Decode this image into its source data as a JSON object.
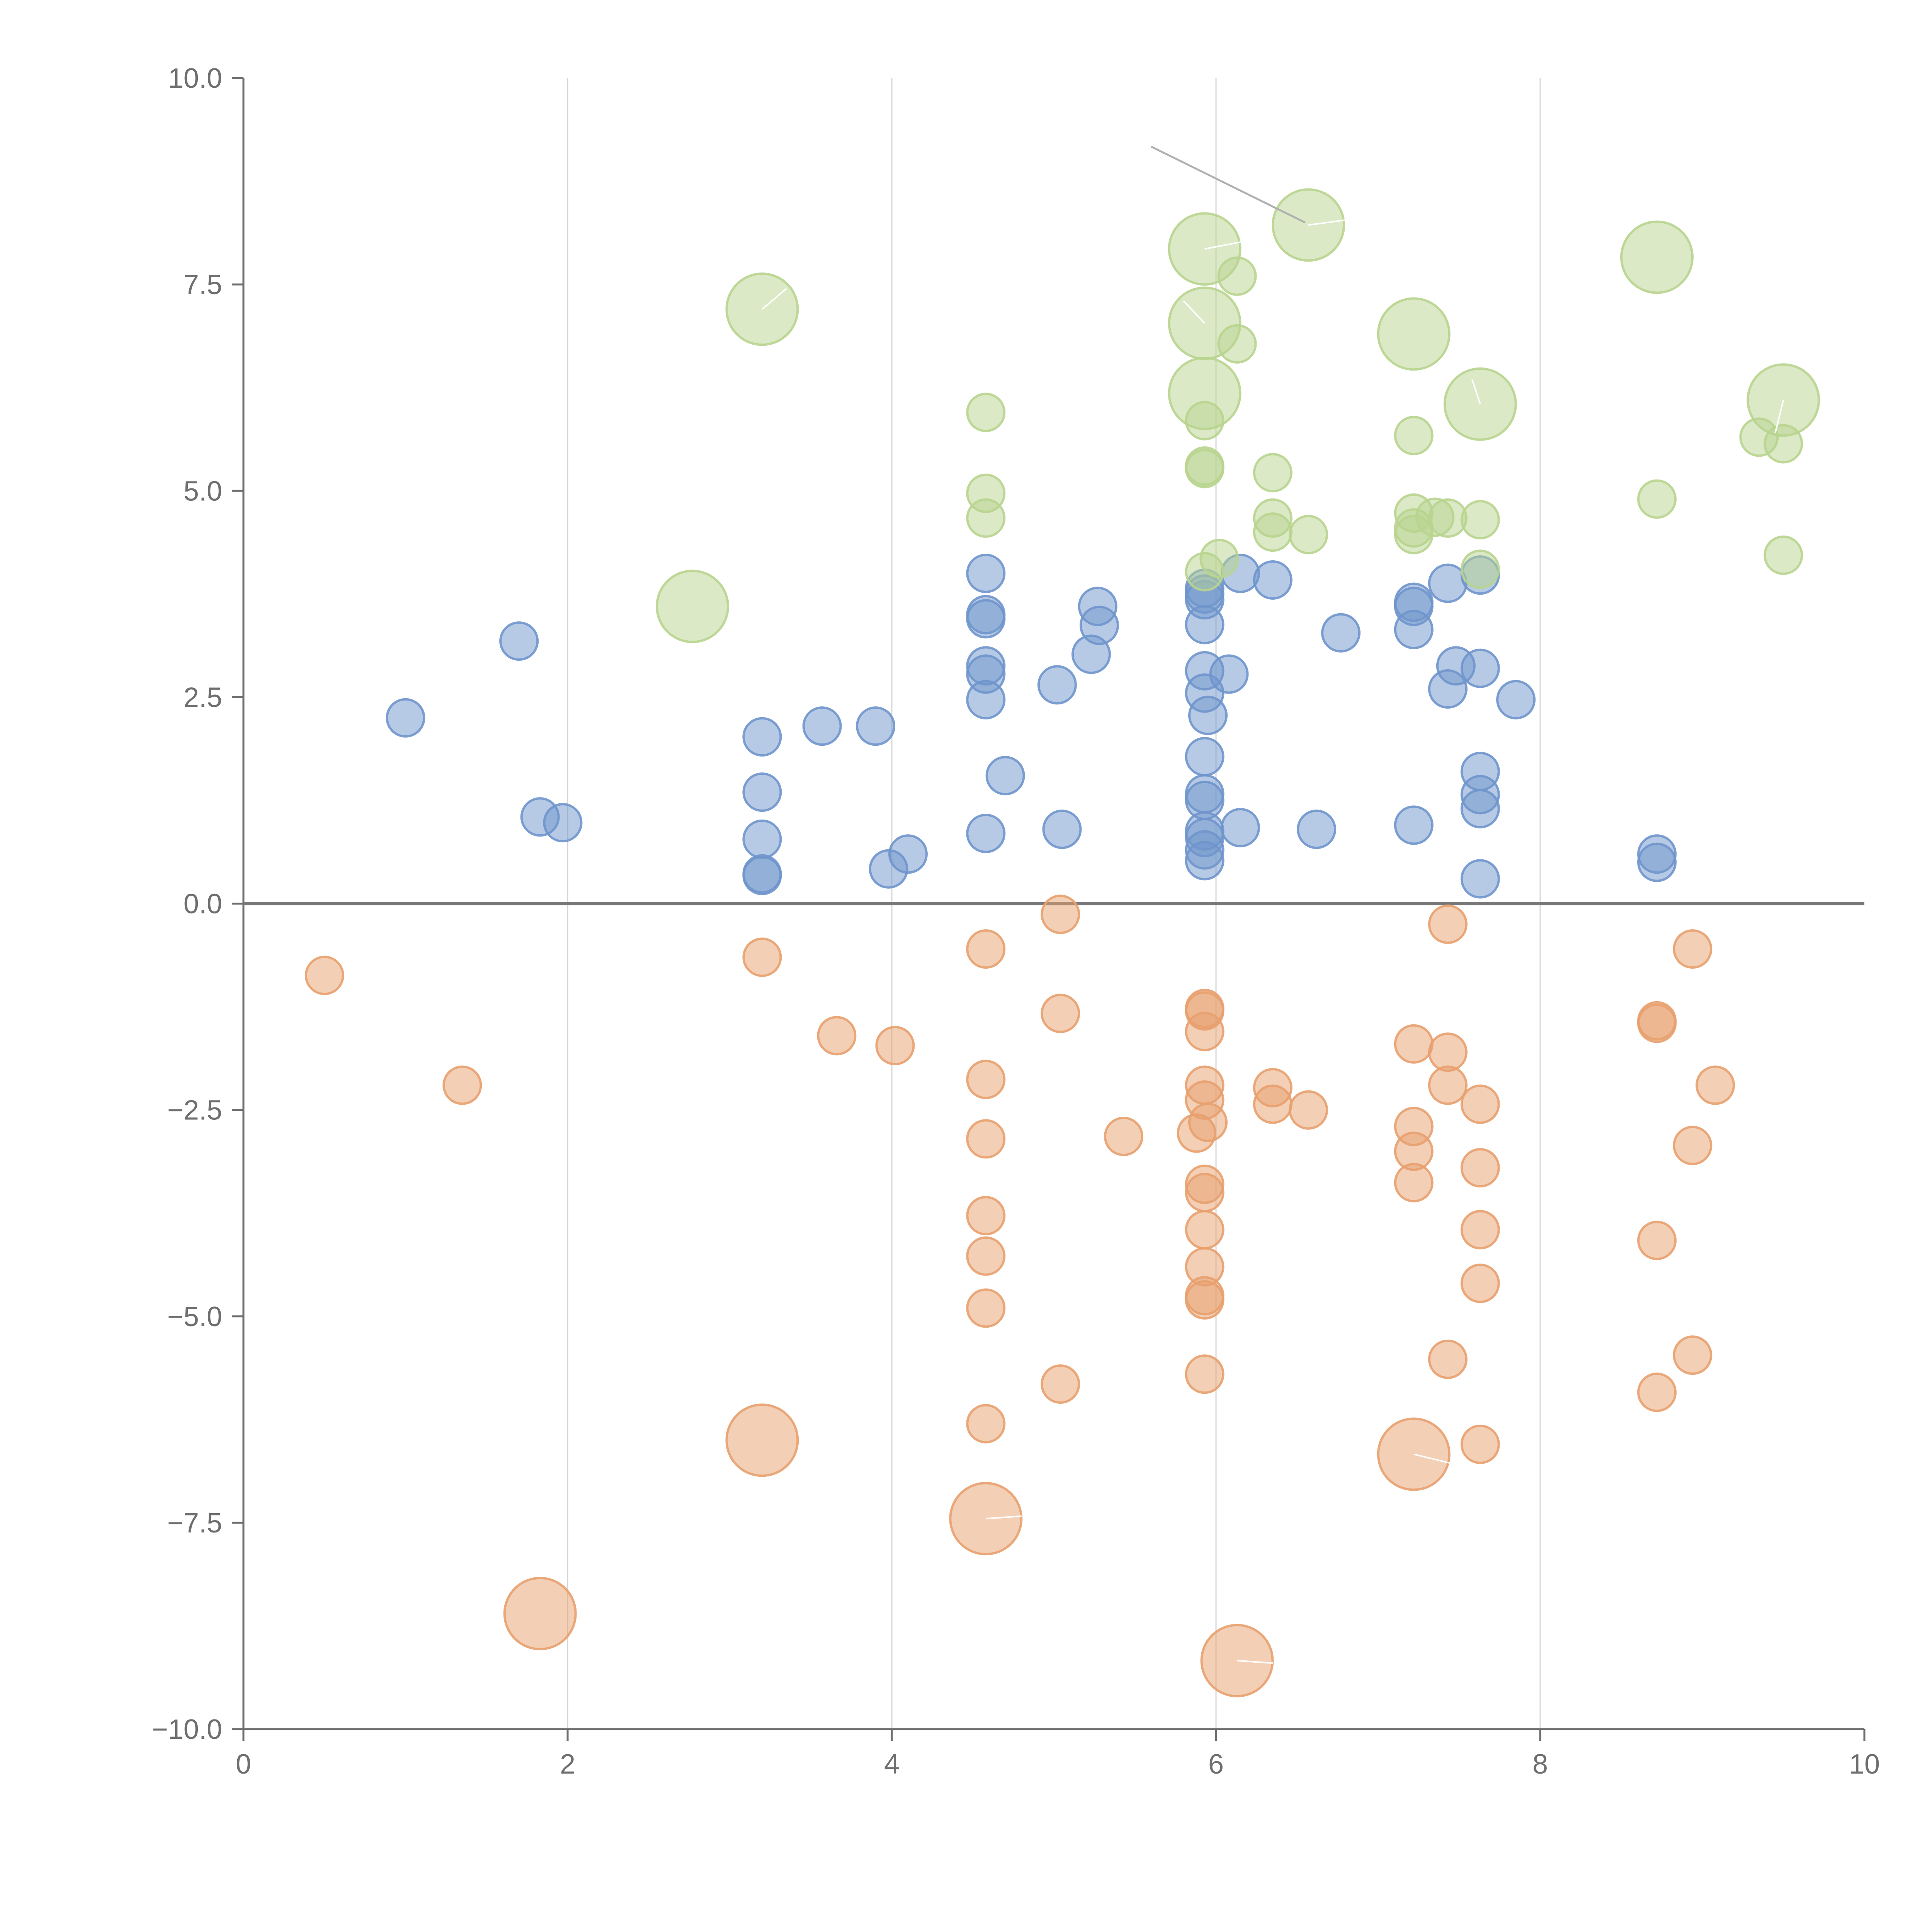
{
  "chart_data": {
    "type": "scatter",
    "variant": "bubble",
    "title": "",
    "xlabel": "",
    "ylabel": "",
    "xlim": [
      0,
      10
    ],
    "ylim": [
      -10,
      10
    ],
    "x_ticks": [
      0,
      2,
      4,
      6,
      8,
      10
    ],
    "x_tick_labels": [
      "0",
      "2",
      "4",
      "6",
      "8",
      "10"
    ],
    "y_ticks": [
      10,
      7.5,
      5,
      2.5,
      0,
      -2.5,
      -5,
      -7.5,
      -10
    ],
    "y_tick_labels": [
      "10.0",
      "7.5",
      "5.0",
      "2.5",
      "0.0",
      "−2.5",
      "−5.0",
      "−7.5",
      "−10.0"
    ],
    "grid": "vertical",
    "reference_line_y": 0,
    "legend": "none",
    "series": [
      {
        "name": "blue",
        "color": "#6f95cc",
        "points": [
          {
            "x": 1.0,
            "y": 2.25,
            "r": 1
          },
          {
            "x": 1.7,
            "y": 3.18,
            "r": 1
          },
          {
            "x": 1.83,
            "y": 1.05,
            "r": 1
          },
          {
            "x": 1.97,
            "y": 0.98,
            "r": 1
          },
          {
            "x": 3.2,
            "y": 2.02,
            "r": 1
          },
          {
            "x": 3.2,
            "y": 1.35,
            "r": 1
          },
          {
            "x": 3.2,
            "y": 0.78,
            "r": 1
          },
          {
            "x": 3.2,
            "y": 0.36,
            "r": 1
          },
          {
            "x": 3.2,
            "y": 0.34,
            "r": 1
          },
          {
            "x": 3.57,
            "y": 2.15,
            "r": 1
          },
          {
            "x": 3.9,
            "y": 2.15,
            "r": 1
          },
          {
            "x": 3.98,
            "y": 0.42,
            "r": 1
          },
          {
            "x": 4.1,
            "y": 0.6,
            "r": 1
          },
          {
            "x": 4.58,
            "y": 4.0,
            "r": 1
          },
          {
            "x": 4.58,
            "y": 3.5,
            "r": 1
          },
          {
            "x": 4.58,
            "y": 3.45,
            "r": 1
          },
          {
            "x": 4.58,
            "y": 2.88,
            "r": 1
          },
          {
            "x": 4.58,
            "y": 2.78,
            "r": 1
          },
          {
            "x": 4.58,
            "y": 2.47,
            "r": 1
          },
          {
            "x": 4.58,
            "y": 0.85,
            "r": 1
          },
          {
            "x": 4.7,
            "y": 1.55,
            "r": 1
          },
          {
            "x": 5.02,
            "y": 2.65,
            "r": 1
          },
          {
            "x": 5.05,
            "y": 0.9,
            "r": 1
          },
          {
            "x": 5.23,
            "y": 3.02,
            "r": 1
          },
          {
            "x": 5.27,
            "y": 3.6,
            "r": 1
          },
          {
            "x": 5.28,
            "y": 3.37,
            "r": 1
          },
          {
            "x": 5.93,
            "y": 3.82,
            "r": 1
          },
          {
            "x": 5.93,
            "y": 3.75,
            "r": 1
          },
          {
            "x": 5.93,
            "y": 3.68,
            "r": 1
          },
          {
            "x": 5.93,
            "y": 3.38,
            "r": 1
          },
          {
            "x": 5.93,
            "y": 2.82,
            "r": 1
          },
          {
            "x": 5.93,
            "y": 2.55,
            "r": 1
          },
          {
            "x": 5.95,
            "y": 2.28,
            "r": 1
          },
          {
            "x": 5.93,
            "y": 1.78,
            "r": 1
          },
          {
            "x": 5.93,
            "y": 1.33,
            "r": 1
          },
          {
            "x": 5.93,
            "y": 1.25,
            "r": 1
          },
          {
            "x": 5.93,
            "y": 0.88,
            "r": 1
          },
          {
            "x": 5.93,
            "y": 0.8,
            "r": 1
          },
          {
            "x": 5.93,
            "y": 0.65,
            "r": 1
          },
          {
            "x": 5.93,
            "y": 0.52,
            "r": 1
          },
          {
            "x": 6.08,
            "y": 2.78,
            "r": 1
          },
          {
            "x": 6.15,
            "y": 4.0,
            "r": 1
          },
          {
            "x": 6.15,
            "y": 0.92,
            "r": 1
          },
          {
            "x": 6.35,
            "y": 3.92,
            "r": 1
          },
          {
            "x": 6.62,
            "y": 0.9,
            "r": 1
          },
          {
            "x": 6.77,
            "y": 3.28,
            "r": 1
          },
          {
            "x": 7.22,
            "y": 3.65,
            "r": 1
          },
          {
            "x": 7.22,
            "y": 3.6,
            "r": 1
          },
          {
            "x": 7.22,
            "y": 3.32,
            "r": 1
          },
          {
            "x": 7.22,
            "y": 0.95,
            "r": 1
          },
          {
            "x": 7.43,
            "y": 3.88,
            "r": 1
          },
          {
            "x": 7.43,
            "y": 2.6,
            "r": 1
          },
          {
            "x": 7.48,
            "y": 2.88,
            "r": 1
          },
          {
            "x": 7.63,
            "y": 3.98,
            "r": 1
          },
          {
            "x": 7.63,
            "y": 2.85,
            "r": 1
          },
          {
            "x": 7.63,
            "y": 1.6,
            "r": 1
          },
          {
            "x": 7.63,
            "y": 1.32,
            "r": 1
          },
          {
            "x": 7.63,
            "y": 1.15,
            "r": 1
          },
          {
            "x": 7.63,
            "y": 0.3,
            "r": 1
          },
          {
            "x": 7.85,
            "y": 2.47,
            "r": 1
          },
          {
            "x": 8.72,
            "y": 0.6,
            "r": 1
          },
          {
            "x": 8.72,
            "y": 0.5,
            "r": 1
          }
        ]
      },
      {
        "name": "orange",
        "color": "#e8a06e",
        "points": [
          {
            "x": 0.5,
            "y": -0.87,
            "r": 1
          },
          {
            "x": 1.35,
            "y": -2.2,
            "r": 1
          },
          {
            "x": 1.83,
            "y": -8.6,
            "r": 2
          },
          {
            "x": 3.2,
            "y": -0.65,
            "r": 1
          },
          {
            "x": 3.2,
            "y": -6.5,
            "r": 2
          },
          {
            "x": 3.66,
            "y": -1.6,
            "r": 1
          },
          {
            "x": 4.02,
            "y": -1.72,
            "r": 1
          },
          {
            "x": 4.58,
            "y": -0.55,
            "r": 1
          },
          {
            "x": 4.58,
            "y": -2.13,
            "r": 1
          },
          {
            "x": 4.58,
            "y": -2.85,
            "r": 1
          },
          {
            "x": 4.58,
            "y": -3.78,
            "r": 1
          },
          {
            "x": 4.58,
            "y": -4.27,
            "r": 1
          },
          {
            "x": 4.58,
            "y": -4.9,
            "r": 1
          },
          {
            "x": 4.58,
            "y": -6.3,
            "r": 1
          },
          {
            "x": 4.58,
            "y": -7.45,
            "r": 2
          },
          {
            "x": 5.04,
            "y": -0.13,
            "r": 1
          },
          {
            "x": 5.04,
            "y": -1.33,
            "r": 1
          },
          {
            "x": 5.04,
            "y": -5.82,
            "r": 1
          },
          {
            "x": 5.43,
            "y": -2.82,
            "r": 1
          },
          {
            "x": 5.88,
            "y": -2.78,
            "r": 1
          },
          {
            "x": 5.93,
            "y": -1.27,
            "r": 1
          },
          {
            "x": 5.93,
            "y": -1.3,
            "r": 1
          },
          {
            "x": 5.93,
            "y": -1.55,
            "r": 1
          },
          {
            "x": 5.93,
            "y": -2.2,
            "r": 1
          },
          {
            "x": 5.93,
            "y": -2.38,
            "r": 1
          },
          {
            "x": 5.95,
            "y": -2.65,
            "r": 1
          },
          {
            "x": 5.93,
            "y": -3.4,
            "r": 1
          },
          {
            "x": 5.93,
            "y": -3.5,
            "r": 1
          },
          {
            "x": 5.93,
            "y": -3.95,
            "r": 1
          },
          {
            "x": 5.93,
            "y": -4.4,
            "r": 1
          },
          {
            "x": 5.93,
            "y": -4.75,
            "r": 1
          },
          {
            "x": 5.93,
            "y": -4.8,
            "r": 1
          },
          {
            "x": 5.93,
            "y": -5.7,
            "r": 1
          },
          {
            "x": 6.13,
            "y": -9.17,
            "r": 2
          },
          {
            "x": 6.35,
            "y": -2.23,
            "r": 1
          },
          {
            "x": 6.35,
            "y": -2.43,
            "r": 1
          },
          {
            "x": 6.57,
            "y": -2.5,
            "r": 1
          },
          {
            "x": 7.22,
            "y": -1.7,
            "r": 1
          },
          {
            "x": 7.22,
            "y": -2.7,
            "r": 1
          },
          {
            "x": 7.22,
            "y": -3.0,
            "r": 1
          },
          {
            "x": 7.22,
            "y": -3.38,
            "r": 1
          },
          {
            "x": 7.22,
            "y": -6.67,
            "r": 2
          },
          {
            "x": 7.43,
            "y": -0.25,
            "r": 1
          },
          {
            "x": 7.43,
            "y": -1.8,
            "r": 1
          },
          {
            "x": 7.43,
            "y": -2.2,
            "r": 1
          },
          {
            "x": 7.43,
            "y": -5.52,
            "r": 1
          },
          {
            "x": 7.63,
            "y": -2.43,
            "r": 1
          },
          {
            "x": 7.63,
            "y": -3.2,
            "r": 1
          },
          {
            "x": 7.63,
            "y": -3.95,
            "r": 1
          },
          {
            "x": 7.63,
            "y": -4.6,
            "r": 1
          },
          {
            "x": 7.63,
            "y": -6.55,
            "r": 1
          },
          {
            "x": 8.72,
            "y": -1.42,
            "r": 1
          },
          {
            "x": 8.72,
            "y": -1.45,
            "r": 1
          },
          {
            "x": 8.72,
            "y": -4.08,
            "r": 1
          },
          {
            "x": 8.72,
            "y": -5.92,
            "r": 1
          },
          {
            "x": 8.94,
            "y": -0.55,
            "r": 1
          },
          {
            "x": 8.94,
            "y": -2.93,
            "r": 1
          },
          {
            "x": 8.94,
            "y": -5.47,
            "r": 1
          },
          {
            "x": 9.08,
            "y": -2.2,
            "r": 1
          }
        ]
      },
      {
        "name": "green",
        "color": "#b8d48e",
        "points": [
          {
            "x": 2.77,
            "y": 3.6,
            "r": 2
          },
          {
            "x": 3.2,
            "y": 7.2,
            "r": 2
          },
          {
            "x": 4.58,
            "y": 5.95,
            "r": 1
          },
          {
            "x": 4.58,
            "y": 4.97,
            "r": 1
          },
          {
            "x": 4.58,
            "y": 4.67,
            "r": 1
          },
          {
            "x": 5.93,
            "y": 7.93,
            "r": 2
          },
          {
            "x": 5.93,
            "y": 7.03,
            "r": 2
          },
          {
            "x": 5.93,
            "y": 6.18,
            "r": 2
          },
          {
            "x": 5.93,
            "y": 5.85,
            "r": 1
          },
          {
            "x": 5.93,
            "y": 5.3,
            "r": 1
          },
          {
            "x": 5.93,
            "y": 5.27,
            "r": 1
          },
          {
            "x": 5.93,
            "y": 4.02,
            "r": 1
          },
          {
            "x": 6.02,
            "y": 4.18,
            "r": 1
          },
          {
            "x": 6.13,
            "y": 7.6,
            "r": 1
          },
          {
            "x": 6.13,
            "y": 6.78,
            "r": 1
          },
          {
            "x": 6.35,
            "y": 5.22,
            "r": 1
          },
          {
            "x": 6.35,
            "y": 4.67,
            "r": 1
          },
          {
            "x": 6.35,
            "y": 4.5,
            "r": 1
          },
          {
            "x": 6.57,
            "y": 4.47,
            "r": 1
          },
          {
            "x": 6.57,
            "y": 8.22,
            "r": 2
          },
          {
            "x": 7.22,
            "y": 6.9,
            "r": 2
          },
          {
            "x": 7.22,
            "y": 5.67,
            "r": 1
          },
          {
            "x": 7.22,
            "y": 4.73,
            "r": 1
          },
          {
            "x": 7.22,
            "y": 4.55,
            "r": 1
          },
          {
            "x": 7.22,
            "y": 4.47,
            "r": 1
          },
          {
            "x": 7.35,
            "y": 4.68,
            "r": 1
          },
          {
            "x": 7.43,
            "y": 4.67,
            "r": 1
          },
          {
            "x": 7.63,
            "y": 6.05,
            "r": 2
          },
          {
            "x": 7.63,
            "y": 4.65,
            "r": 1
          },
          {
            "x": 7.63,
            "y": 4.05,
            "r": 1
          },
          {
            "x": 8.72,
            "y": 7.83,
            "r": 2
          },
          {
            "x": 8.72,
            "y": 4.9,
            "r": 1
          },
          {
            "x": 9.35,
            "y": 5.65,
            "r": 1
          },
          {
            "x": 9.5,
            "y": 6.1,
            "r": 2
          },
          {
            "x": 9.5,
            "y": 5.57,
            "r": 1
          },
          {
            "x": 9.5,
            "y": 4.22,
            "r": 1
          }
        ]
      }
    ]
  }
}
